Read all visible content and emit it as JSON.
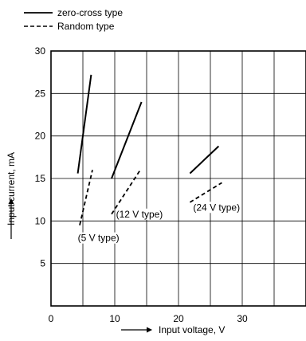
{
  "chart_data": {
    "type": "line",
    "xlabel": "Input voltage, V",
    "ylabel": "Input current, mA",
    "xlim": [
      0,
      40
    ],
    "ylim": [
      0,
      30
    ],
    "xticks": [
      "0",
      "10",
      "20",
      "30"
    ],
    "yticks": [
      "5",
      "10",
      "15",
      "20",
      "25",
      "30"
    ],
    "grid": true,
    "legend_position": "top-left",
    "legend": [
      {
        "label": "zero-cross type",
        "style": "solid"
      },
      {
        "label": "Random type",
        "style": "dashed"
      }
    ],
    "series": [
      {
        "style": "solid",
        "points": [
          [
            4.2,
            15.6
          ],
          [
            6.3,
            27.2
          ]
        ]
      },
      {
        "style": "dashed",
        "points": [
          [
            4.5,
            9.5
          ],
          [
            6.5,
            16.0
          ]
        ]
      },
      {
        "style": "solid",
        "points": [
          [
            9.5,
            15.0
          ],
          [
            14.2,
            24.0
          ]
        ]
      },
      {
        "style": "dashed",
        "points": [
          [
            9.5,
            10.8
          ],
          [
            14.0,
            16.0
          ]
        ]
      },
      {
        "style": "solid",
        "points": [
          [
            21.8,
            15.6
          ],
          [
            26.3,
            18.8
          ]
        ]
      },
      {
        "style": "dashed",
        "points": [
          [
            21.8,
            12.2
          ],
          [
            26.8,
            14.5
          ]
        ]
      }
    ],
    "annotations": [
      {
        "text": "(5 V type)",
        "x": 4.2,
        "y": 8.0
      },
      {
        "text": "(12 V type)",
        "x": 10.2,
        "y": 10.8
      },
      {
        "text": "(24 V type)",
        "x": 22.3,
        "y": 11.6
      }
    ]
  }
}
